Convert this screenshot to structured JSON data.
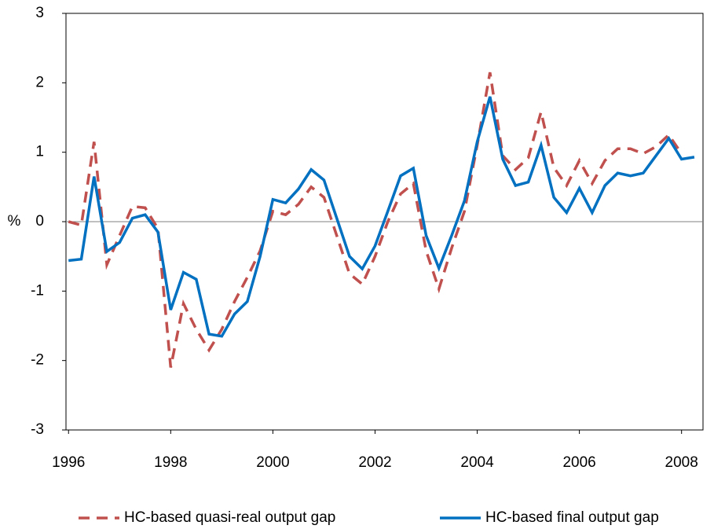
{
  "chart_data": {
    "type": "line",
    "y_label": "%",
    "x": [
      1996,
      1996.25,
      1996.5,
      1996.75,
      1997,
      1997.25,
      1997.5,
      1997.75,
      1998,
      1998.25,
      1998.5,
      1998.75,
      1999,
      1999.25,
      1999.5,
      1999.75,
      2000,
      2000.25,
      2000.5,
      2000.75,
      2001,
      2001.25,
      2001.5,
      2001.75,
      2002,
      2002.25,
      2002.5,
      2002.75,
      2003,
      2003.25,
      2003.5,
      2003.75,
      2004,
      2004.25,
      2004.5,
      2004.75,
      2005,
      2005.25,
      2005.5,
      2005.75,
      2006,
      2006.25,
      2006.5,
      2006.75,
      2007,
      2007.25,
      2007.5,
      2007.75,
      2008,
      2008.25
    ],
    "series": [
      {
        "name": "HC-based quasi-real output gap",
        "color": "#c0504d",
        "dashed": true,
        "values": [
          0.0,
          -0.05,
          1.15,
          -0.62,
          -0.2,
          0.22,
          0.2,
          -0.1,
          -2.1,
          -1.18,
          -1.55,
          -1.85,
          -1.55,
          -1.15,
          -0.8,
          -0.42,
          0.15,
          0.1,
          0.25,
          0.5,
          0.35,
          -0.2,
          -0.75,
          -0.9,
          -0.5,
          0.0,
          0.4,
          0.55,
          -0.42,
          -0.97,
          -0.38,
          0.15,
          1.1,
          2.15,
          0.95,
          0.75,
          0.92,
          1.58,
          0.78,
          0.52,
          0.88,
          0.55,
          0.88,
          1.05,
          1.05,
          0.98,
          1.08,
          1.25,
          0.98,
          null
        ]
      },
      {
        "name": "HC-based final output gap",
        "color": "#0070c0",
        "dashed": false,
        "values": [
          -0.56,
          -0.54,
          0.65,
          -0.43,
          -0.3,
          0.05,
          0.1,
          -0.15,
          -1.27,
          -0.73,
          -0.83,
          -1.62,
          -1.65,
          -1.33,
          -1.15,
          -0.5,
          0.32,
          0.27,
          0.47,
          0.75,
          0.6,
          0.05,
          -0.5,
          -0.68,
          -0.35,
          0.15,
          0.66,
          0.77,
          -0.2,
          -0.67,
          -0.2,
          0.3,
          1.15,
          1.8,
          0.9,
          0.52,
          0.57,
          1.1,
          0.35,
          0.13,
          0.48,
          0.13,
          0.52,
          0.7,
          0.66,
          0.7,
          0.95,
          1.2,
          0.9,
          0.93
        ]
      }
    ],
    "xlim": [
      1995.95,
      2008.42
    ],
    "xticks": [
      1996,
      1998,
      2000,
      2002,
      2004,
      2006,
      2008
    ],
    "ylim": [
      -3,
      3
    ],
    "yticks": [
      -3,
      -2,
      -1,
      0,
      1,
      2,
      3
    ],
    "zero_line": true,
    "legend": "bottom"
  }
}
